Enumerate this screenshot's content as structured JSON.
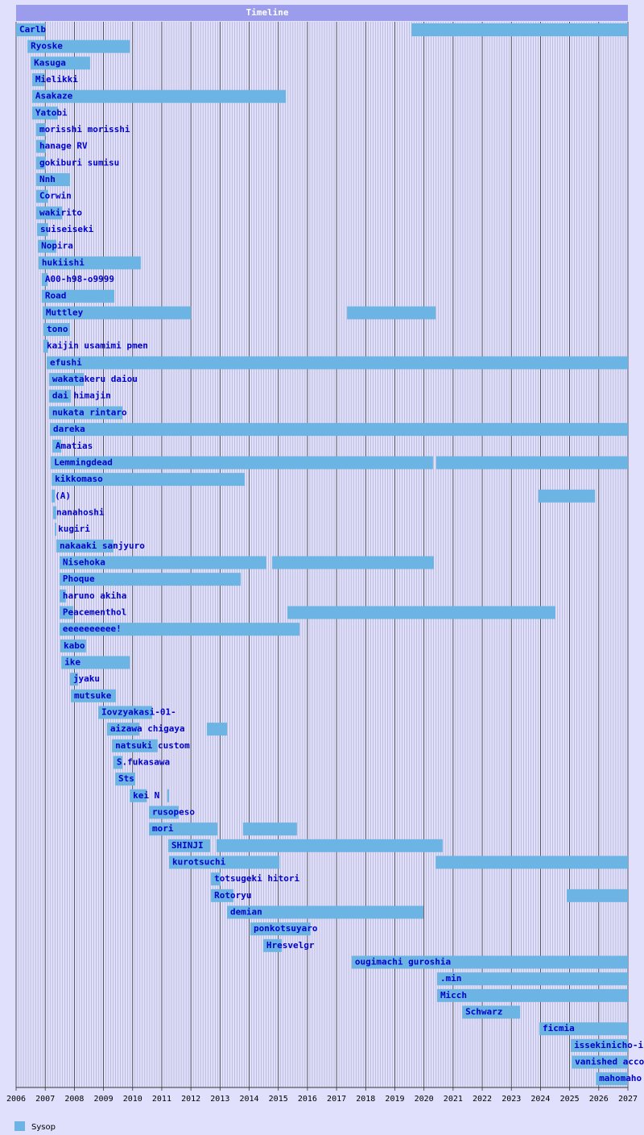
{
  "chart_data": {
    "type": "timeline",
    "title": "Timeline",
    "xlim": [
      2006,
      2027
    ],
    "xticks": [
      2006,
      2007,
      2008,
      2009,
      2010,
      2011,
      2012,
      2013,
      2014,
      2015,
      2016,
      2017,
      2018,
      2019,
      2020,
      2021,
      2022,
      2023,
      2024,
      2025,
      2026,
      2027
    ],
    "series": [
      {
        "name": "Sysop",
        "color": "#6cb4e4"
      }
    ],
    "rows": [
      {
        "label": "Carlb",
        "bars": [
          [
            2006.0,
            2007.0
          ],
          [
            2019.57,
            2027
          ]
        ]
      },
      {
        "label": "Ryoske",
        "bars": [
          [
            2006.39,
            2009.9
          ]
        ]
      },
      {
        "label": "Kasuga",
        "bars": [
          [
            2006.5,
            2008.54
          ]
        ]
      },
      {
        "label": "Mielikki",
        "bars": [
          [
            2006.55,
            2006.97
          ]
        ]
      },
      {
        "label": "Asakaze",
        "bars": [
          [
            2006.55,
            2015.26
          ]
        ]
      },
      {
        "label": "Yatobi",
        "bars": [
          [
            2006.55,
            2007.44
          ]
        ]
      },
      {
        "label": "morisshi morisshi",
        "bars": [
          [
            2006.69,
            2007.02
          ]
        ]
      },
      {
        "label": "hanage RV",
        "bars": [
          [
            2006.69,
            2007.02
          ]
        ]
      },
      {
        "label": "gokiburi sumisu",
        "bars": [
          [
            2006.69,
            2007.02
          ]
        ]
      },
      {
        "label": "Nnh",
        "bars": [
          [
            2006.69,
            2007.85
          ]
        ]
      },
      {
        "label": "Corwin",
        "bars": [
          [
            2006.69,
            2007.1
          ]
        ]
      },
      {
        "label": "wakirito",
        "bars": [
          [
            2006.69,
            2007.58
          ]
        ]
      },
      {
        "label": "suiseiseki",
        "bars": [
          [
            2006.72,
            2007.1
          ]
        ]
      },
      {
        "label": "Nopira",
        "bars": [
          [
            2006.75,
            2007.38
          ]
        ]
      },
      {
        "label": "hukiishi",
        "bars": [
          [
            2006.77,
            2010.28
          ]
        ]
      },
      {
        "label": "A00-h98-o9999",
        "bars": [
          [
            2006.88,
            2007.08
          ]
        ]
      },
      {
        "label": "Road",
        "bars": [
          [
            2006.88,
            2009.37
          ]
        ]
      },
      {
        "label": "Muttley",
        "bars": [
          [
            2006.91,
            2012.0
          ],
          [
            2017.36,
            2020.4
          ]
        ]
      },
      {
        "label": "tono",
        "bars": [
          [
            2006.94,
            2007.85
          ]
        ]
      },
      {
        "label": "kaijin usamimi pmen",
        "bars": [
          [
            2006.94,
            2007.1
          ]
        ]
      },
      {
        "label": "efushi",
        "bars": [
          [
            2007.05,
            2027
          ]
        ]
      },
      {
        "label": "wakatakeru daiou",
        "bars": [
          [
            2007.13,
            2008.32
          ]
        ]
      },
      {
        "label": "dai himajin",
        "bars": [
          [
            2007.13,
            2007.88
          ]
        ]
      },
      {
        "label": "nukata rintaro",
        "bars": [
          [
            2007.13,
            2009.65
          ]
        ]
      },
      {
        "label": "dareka",
        "bars": [
          [
            2007.16,
            2027
          ]
        ]
      },
      {
        "label": "Amatias",
        "bars": [
          [
            2007.24,
            2007.55
          ]
        ]
      },
      {
        "label": "Lemmingdead",
        "bars": [
          [
            2007.19,
            2020.31
          ],
          [
            2020.42,
            2027
          ]
        ]
      },
      {
        "label": "kikkomaso",
        "bars": [
          [
            2007.22,
            2013.85
          ]
        ]
      },
      {
        "label": "(A)",
        "bars": [
          [
            2007.22,
            2007.33
          ],
          [
            2023.93,
            2025.87
          ]
        ]
      },
      {
        "label": "nanahoshi",
        "bars": [
          [
            2007.27,
            2007.38
          ]
        ]
      },
      {
        "label": "kugiri",
        "bars": [
          [
            2007.33,
            2007.38
          ]
        ]
      },
      {
        "label": "nakaaki sanjyuro",
        "bars": [
          [
            2007.38,
            2009.34
          ]
        ]
      },
      {
        "label": "Nisehoka",
        "bars": [
          [
            2007.49,
            2014.59
          ],
          [
            2014.79,
            2020.34
          ]
        ]
      },
      {
        "label": "Phoque",
        "bars": [
          [
            2007.49,
            2013.71
          ]
        ]
      },
      {
        "label": "haruno akiha",
        "bars": [
          [
            2007.49,
            2007.71
          ]
        ]
      },
      {
        "label": "Peacementhol",
        "bars": [
          [
            2007.49,
            2007.96
          ],
          [
            2015.31,
            2024.51
          ]
        ]
      },
      {
        "label": "eeeeeeeeee!",
        "bars": [
          [
            2007.49,
            2015.73
          ]
        ]
      },
      {
        "label": "kabo",
        "bars": [
          [
            2007.52,
            2008.4
          ]
        ]
      },
      {
        "label": "ike",
        "bars": [
          [
            2007.55,
            2009.9
          ]
        ]
      },
      {
        "label": "jyaku",
        "bars": [
          [
            2007.85,
            2008.13
          ]
        ]
      },
      {
        "label": "mutsuke",
        "bars": [
          [
            2007.88,
            2009.43
          ]
        ]
      },
      {
        "label": "Iovzyakasi-01-",
        "bars": [
          [
            2008.82,
            2010.67
          ]
        ]
      },
      {
        "label": "aizawa chigaya",
        "bars": [
          [
            2009.12,
            2010.23
          ],
          [
            2012.55,
            2013.24
          ]
        ]
      },
      {
        "label": "natsuki custom",
        "bars": [
          [
            2009.29,
            2010.86
          ]
        ]
      },
      {
        "label": "S.fukasawa",
        "bars": [
          [
            2009.34,
            2009.65
          ]
        ]
      },
      {
        "label": "Sts",
        "bars": [
          [
            2009.4,
            2010.09
          ]
        ]
      },
      {
        "label": "kei N",
        "bars": [
          [
            2009.9,
            2010.48
          ],
          [
            2011.19,
            2011.25
          ]
        ]
      },
      {
        "label": "rusopeso",
        "bars": [
          [
            2010.56,
            2011.58
          ]
        ]
      },
      {
        "label": "mori",
        "bars": [
          [
            2010.56,
            2012.91
          ],
          [
            2013.79,
            2015.64
          ]
        ]
      },
      {
        "label": "SHINJI",
        "bars": [
          [
            2011.22,
            2012.66
          ],
          [
            2012.88,
            2020.64
          ]
        ]
      },
      {
        "label": "kurotsuchi",
        "bars": [
          [
            2011.25,
            2015.04
          ],
          [
            2020.4,
            2027
          ]
        ]
      },
      {
        "label": "totsugeki hitori",
        "bars": [
          [
            2012.69,
            2013.02
          ]
        ]
      },
      {
        "label": "Rotoryu",
        "bars": [
          [
            2012.69,
            2013.46
          ],
          [
            2024.9,
            2027
          ]
        ]
      },
      {
        "label": "demian",
        "bars": [
          [
            2013.24,
            2019.98
          ]
        ]
      },
      {
        "label": "ponkotsuyaro",
        "bars": [
          [
            2014.04,
            2016.11
          ]
        ]
      },
      {
        "label": "Hresvelgr",
        "bars": [
          [
            2014.48,
            2015.12
          ]
        ]
      },
      {
        "label": "ougimachi guroshia",
        "bars": [
          [
            2017.52,
            2027
          ]
        ]
      },
      {
        "label": ".min",
        "bars": [
          [
            2020.45,
            2027
          ]
        ]
      },
      {
        "label": "Micch",
        "bars": [
          [
            2020.45,
            2027
          ]
        ]
      },
      {
        "label": "Schwarz",
        "bars": [
          [
            2021.31,
            2023.3
          ]
        ]
      },
      {
        "label": "ficmia",
        "bars": [
          [
            2023.96,
            2027
          ]
        ]
      },
      {
        "label": "issekinicho-i",
        "bars": [
          [
            2025.04,
            2027
          ]
        ]
      },
      {
        "label": "vanished acco",
        "bars": [
          [
            2025.07,
            2027
          ]
        ]
      },
      {
        "label": "mahomaho",
        "bars": [
          [
            2025.9,
            2027
          ]
        ]
      }
    ]
  }
}
